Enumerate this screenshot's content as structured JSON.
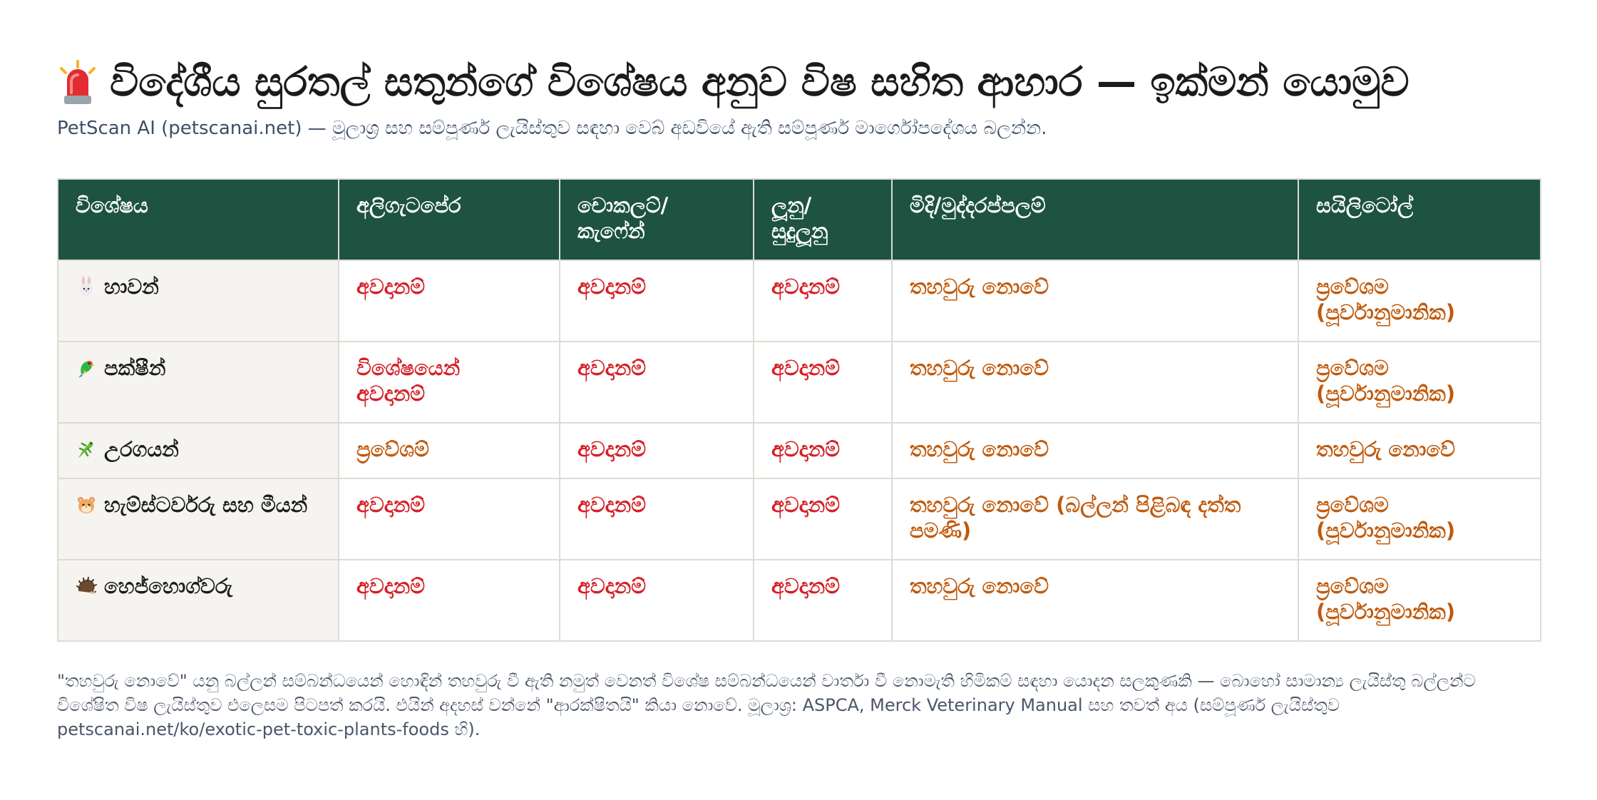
{
  "header": {
    "title": "විදේශීය සුරතල් සතුන්ගේ විශේෂය අනුව විෂ සහිත ආහාර — ඉක්මන් යොමුව",
    "title_icon": "siren-icon",
    "subtitle": "PetScan AI (petscanai.net) — මූලාශ්‍ර සහ සම්පූර්ණ ලැයිස්තුව සඳහා වෙබ් අඩවියේ ඇති සම්පූර්ණ මාර්ගෝපදේශය බලන්න."
  },
  "colors": {
    "header_bg": "#1d5340",
    "danger": "#d61f26",
    "caution": "#c05a0c",
    "species_bg": "#f5f4f0"
  },
  "table": {
    "columns": [
      "විශේෂය",
      "අලිගැටපේර",
      "චොකලට්/\nකැෆේන්",
      "ලූනු/\nසුදුලූනු",
      "මිදි/මුද්දරප්පලම්",
      "සයිලිටෝල්"
    ],
    "rows": [
      {
        "icon": "rabbit-icon",
        "species": "හාවන්",
        "cells": [
          {
            "text": "අවදානම්",
            "level": "danger"
          },
          {
            "text": "අවදානම්",
            "level": "danger"
          },
          {
            "text": "අවදානම්",
            "level": "danger"
          },
          {
            "text": "තහවුරු නොවේ",
            "level": "caution"
          },
          {
            "text": "ප්‍රවේශම\n(පූර්වානුමානික)",
            "level": "caution"
          }
        ]
      },
      {
        "icon": "parrot-icon",
        "species": "පක්ෂීන්",
        "cells": [
          {
            "text": "විශේෂයෙන්\nඅවදානම්",
            "level": "danger"
          },
          {
            "text": "අවදානම්",
            "level": "danger"
          },
          {
            "text": "අවදානම්",
            "level": "danger"
          },
          {
            "text": "තහවුරු නොවේ",
            "level": "caution"
          },
          {
            "text": "ප්‍රවේශම\n(පූර්වානුමානික)",
            "level": "caution"
          }
        ]
      },
      {
        "icon": "lizard-icon",
        "species": "උරගයන්",
        "cells": [
          {
            "text": "ප්‍රවේශම්",
            "level": "caution"
          },
          {
            "text": "අවදානම්",
            "level": "danger"
          },
          {
            "text": "අවදානම්",
            "level": "danger"
          },
          {
            "text": "තහවුරු නොවේ",
            "level": "caution"
          },
          {
            "text": "තහවුරු නොවේ",
            "level": "caution"
          }
        ]
      },
      {
        "icon": "hamster-icon",
        "species": "හැම්ස්ටර්වරු සහ මීයන්",
        "cells": [
          {
            "text": "අවදානම්",
            "level": "danger"
          },
          {
            "text": "අවදානම්",
            "level": "danger"
          },
          {
            "text": "අවදානම්",
            "level": "danger"
          },
          {
            "text": "තහවුරු නොවේ (බල්ලන් පිළිබඳ දත්ත පමණි)",
            "level": "caution"
          },
          {
            "text": "ප්‍රවේශම\n(පූර්වානුමානික)",
            "level": "caution"
          }
        ]
      },
      {
        "icon": "hedgehog-icon",
        "species": "හෙජ්හොග්වරු",
        "cells": [
          {
            "text": "අවදානම්",
            "level": "danger"
          },
          {
            "text": "අවදානම්",
            "level": "danger"
          },
          {
            "text": "අවදානම්",
            "level": "danger"
          },
          {
            "text": "තහවුරු නොවේ",
            "level": "caution"
          },
          {
            "text": "ප්‍රවේශම\n(පූර්වානුමානික)",
            "level": "caution"
          }
        ]
      }
    ]
  },
  "footnote": "\"තහවුරු නොවේ\" යනු බල්ලන් සම්බන්ධයෙන් හොඳින් තහවුරු වී ඇති නමුත් වෙනත් විශේෂ සම්බන්ධයෙන් වාර්තා වී නොමැති හිමිකම් සඳහා යොදන සලකුණකි — බොහෝ සාමාන්‍ය ලැයිස්තු බල්ලන්ට විශේෂිත විෂ ලැයිස්තුව එලෙසම පිටපත් කරයි. එයින් අදහස් වන්නේ \"ආරක්ෂිතයි\" කියා නොවේ. මූලාශ්‍ර: ASPCA, Merck Veterinary Manual සහ තවත් අය (සම්පූර්ණ ලැයිස්තුව petscanai.net/ko/exotic-pet-toxic-plants-foods හි)."
}
